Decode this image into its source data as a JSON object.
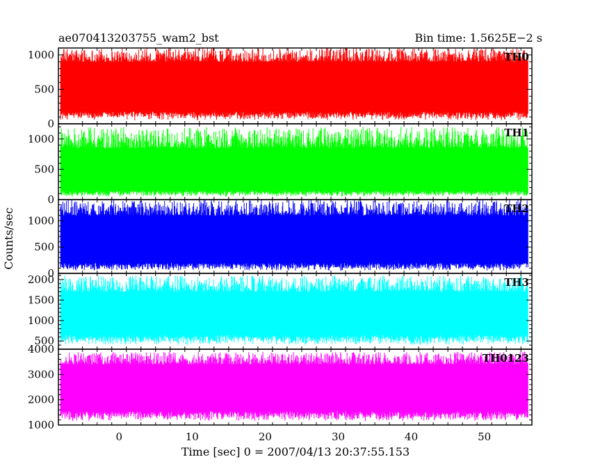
{
  "chart_data": {
    "type": "line",
    "title": "ae070413203755_wam2_bst",
    "subtitle": "Bin time: 1.5625E−2 s",
    "xlabel": "Time [sec] 0 = 2007/04/13 20:37:55.153",
    "ylabel": "Counts/sec",
    "xlim": [
      -8.3,
      56.5
    ],
    "data_x_range": [
      -8.0,
      56.0
    ],
    "x_ticks": [
      0,
      10,
      20,
      30,
      40,
      50
    ],
    "x_tick_labels": [
      "0",
      "10",
      "20",
      "30",
      "40",
      "50"
    ],
    "panels": [
      {
        "name": "TH0",
        "color": "#ff0000",
        "ylim": [
          0,
          1100
        ],
        "y_ticks": [
          0,
          500,
          1000
        ],
        "y_tick_labels": [
          "0",
          "500",
          "1000"
        ],
        "band_low": 50,
        "band_high": 1100,
        "typical_low": 180,
        "typical_high": 900
      },
      {
        "name": "TH1",
        "color": "#00ff00",
        "ylim": [
          0,
          1250
        ],
        "y_ticks": [
          0,
          500,
          1000
        ],
        "y_tick_labels": [
          "0",
          "500",
          "1000"
        ],
        "band_low": 50,
        "band_high": 1200,
        "typical_low": 150,
        "typical_high": 850
      },
      {
        "name": "TH2",
        "color": "#0000ff",
        "ylim": [
          0,
          1400
        ],
        "y_ticks": [
          0,
          500,
          1000
        ],
        "y_tick_labels": [
          "0",
          "500",
          "1000"
        ],
        "band_low": 50,
        "band_high": 1400,
        "typical_low": 200,
        "typical_high": 1100
      },
      {
        "name": "TH3",
        "color": "#00ffff",
        "ylim": [
          300,
          2150
        ],
        "y_ticks": [
          500,
          1000,
          1500,
          2000
        ],
        "y_tick_labels": [
          "500",
          "1000",
          "1500",
          "2000"
        ],
        "band_low": 400,
        "band_high": 2100,
        "typical_low": 650,
        "typical_high": 1700
      },
      {
        "name": "TH0123",
        "color": "#ff00ff",
        "ylim": [
          1000,
          4000
        ],
        "y_ticks": [
          1000,
          2000,
          3000,
          4000
        ],
        "y_tick_labels": [
          "1000",
          "2000",
          "3000",
          "4000"
        ],
        "band_low": 1150,
        "band_high": 3900,
        "typical_low": 1550,
        "typical_high": 3400
      }
    ]
  }
}
